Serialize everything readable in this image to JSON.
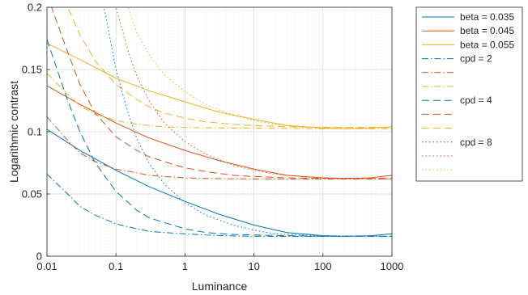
{
  "chart_data": {
    "type": "line",
    "title": "",
    "xlabel": "Luminance",
    "ylabel": "Logarithmic contrast",
    "xscale": "log",
    "xlim": [
      0.01,
      1000
    ],
    "ylim": [
      0,
      0.2
    ],
    "x_ticks": [
      0.01,
      0.1,
      1,
      10,
      100,
      1000
    ],
    "x_tick_labels": [
      "0.01",
      "0.1",
      "1",
      "10",
      "100",
      "1000"
    ],
    "y_ticks": [
      0,
      0.05,
      0.1,
      0.15,
      0.2
    ],
    "y_tick_labels": [
      "0",
      "0.05",
      "0.1",
      "0.15",
      "0.2"
    ],
    "grid": true,
    "legend_position": "outside-right",
    "colors": {
      "beta_0035": "#0072BD",
      "beta_0045": "#D95319",
      "beta_0055": "#EDB120",
      "axis": "#262626",
      "grid": "#d9d9d9"
    },
    "series": [
      {
        "name": "beta = 0.035",
        "color": "#0072BD",
        "style": "solid",
        "x": [
          0.01,
          0.03,
          0.1,
          0.3,
          1,
          3,
          10,
          30,
          100,
          200,
          500,
          1000
        ],
        "y": [
          0.102,
          0.085,
          0.069,
          0.056,
          0.044,
          0.034,
          0.025,
          0.019,
          0.0165,
          0.016,
          0.0165,
          0.018
        ]
      },
      {
        "name": "beta = 0.045",
        "color": "#D95319",
        "style": "solid",
        "x": [
          0.01,
          0.03,
          0.1,
          0.3,
          1,
          3,
          10,
          30,
          100,
          200,
          500,
          1000
        ],
        "y": [
          0.137,
          0.122,
          0.107,
          0.095,
          0.085,
          0.077,
          0.07,
          0.065,
          0.063,
          0.0625,
          0.063,
          0.065
        ]
      },
      {
        "name": "beta = 0.055",
        "color": "#EDB120",
        "style": "solid",
        "x": [
          0.01,
          0.03,
          0.1,
          0.3,
          1,
          3,
          10,
          30,
          100,
          200,
          500,
          1000
        ],
        "y": [
          0.171,
          0.158,
          0.143,
          0.133,
          0.124,
          0.116,
          0.11,
          0.105,
          0.103,
          0.1025,
          0.103,
          0.104
        ]
      },
      {
        "name": "cpd = 2",
        "color": "#0072BD",
        "style": "dashdot",
        "x": [
          0.01,
          0.02,
          0.03,
          0.05,
          0.1,
          0.2,
          0.3,
          0.5,
          1,
          2,
          5,
          10,
          100,
          1000
        ],
        "y": [
          0.066,
          0.05,
          0.04,
          0.033,
          0.026,
          0.022,
          0.02,
          0.019,
          0.018,
          0.017,
          0.0163,
          0.016,
          0.016,
          0.016
        ]
      },
      {
        "name": "",
        "color": "#D95319",
        "style": "dashdot",
        "x": [
          0.01,
          0.02,
          0.03,
          0.05,
          0.1,
          0.2,
          0.3,
          0.5,
          1,
          2,
          5,
          10,
          100,
          1000
        ],
        "y": [
          0.112,
          0.093,
          0.083,
          0.076,
          0.07,
          0.067,
          0.065,
          0.064,
          0.063,
          0.0625,
          0.0622,
          0.062,
          0.062,
          0.062
        ]
      },
      {
        "name": "",
        "color": "#EDB120",
        "style": "dashdot",
        "x": [
          0.01,
          0.02,
          0.03,
          0.05,
          0.1,
          0.2,
          0.3,
          0.5,
          1,
          2,
          5,
          10,
          100,
          1000
        ],
        "y": [
          0.147,
          0.13,
          0.121,
          0.114,
          0.109,
          0.106,
          0.105,
          0.104,
          0.1035,
          0.1032,
          0.103,
          0.1028,
          0.1025,
          0.1025
        ]
      },
      {
        "name": "cpd = 4",
        "color": "#0072BD",
        "style": "dashed",
        "x": [
          0.01,
          0.02,
          0.03,
          0.05,
          0.1,
          0.2,
          0.3,
          0.5,
          1,
          2,
          5,
          10,
          30,
          100,
          1000
        ],
        "y": [
          0.174,
          0.125,
          0.1,
          0.075,
          0.052,
          0.037,
          0.031,
          0.027,
          0.022,
          0.019,
          0.0175,
          0.017,
          0.0165,
          0.016,
          0.016
        ]
      },
      {
        "name": "",
        "color": "#D95319",
        "style": "dashed",
        "x": [
          0.01,
          0.02,
          0.03,
          0.05,
          0.1,
          0.2,
          0.3,
          0.5,
          1,
          2,
          5,
          10,
          30,
          100,
          1000
        ],
        "y": [
          0.21,
          0.164,
          0.138,
          0.115,
          0.096,
          0.085,
          0.08,
          0.076,
          0.071,
          0.068,
          0.065,
          0.064,
          0.063,
          0.0625,
          0.0625
        ]
      },
      {
        "name": "",
        "color": "#EDB120",
        "style": "dashed",
        "x": [
          0.01,
          0.02,
          0.03,
          0.05,
          0.1,
          0.2,
          0.3,
          0.5,
          1,
          2,
          5,
          10,
          30,
          100,
          1000
        ],
        "y": [
          0.25,
          0.2,
          0.178,
          0.157,
          0.138,
          0.126,
          0.12,
          0.115,
          0.111,
          0.108,
          0.106,
          0.105,
          0.104,
          0.1035,
          0.1035
        ]
      },
      {
        "name": "cpd = 8",
        "color": "#0072BD",
        "style": "dotted",
        "x": [
          0.05,
          0.07,
          0.1,
          0.15,
          0.2,
          0.3,
          0.5,
          1,
          2,
          5,
          10,
          20,
          50,
          100,
          1000
        ],
        "y": [
          0.23,
          0.195,
          0.15,
          0.115,
          0.095,
          0.075,
          0.058,
          0.043,
          0.033,
          0.025,
          0.021,
          0.018,
          0.017,
          0.0165,
          0.016
        ]
      },
      {
        "name": "",
        "color": "#D95319",
        "style": "dotted",
        "x": [
          0.07,
          0.1,
          0.15,
          0.2,
          0.3,
          0.5,
          1,
          2,
          5,
          10,
          20,
          50,
          100,
          1000
        ],
        "y": [
          0.23,
          0.2,
          0.165,
          0.145,
          0.125,
          0.107,
          0.092,
          0.082,
          0.073,
          0.069,
          0.066,
          0.064,
          0.063,
          0.062
        ]
      },
      {
        "name": "",
        "color": "#EDB120",
        "style": "dotted",
        "x": [
          0.1,
          0.15,
          0.2,
          0.3,
          0.5,
          1,
          2,
          5,
          10,
          20,
          50,
          100,
          1000
        ],
        "y": [
          0.23,
          0.2,
          0.18,
          0.162,
          0.146,
          0.132,
          0.122,
          0.113,
          0.109,
          0.106,
          0.104,
          0.1035,
          0.103
        ]
      }
    ]
  }
}
